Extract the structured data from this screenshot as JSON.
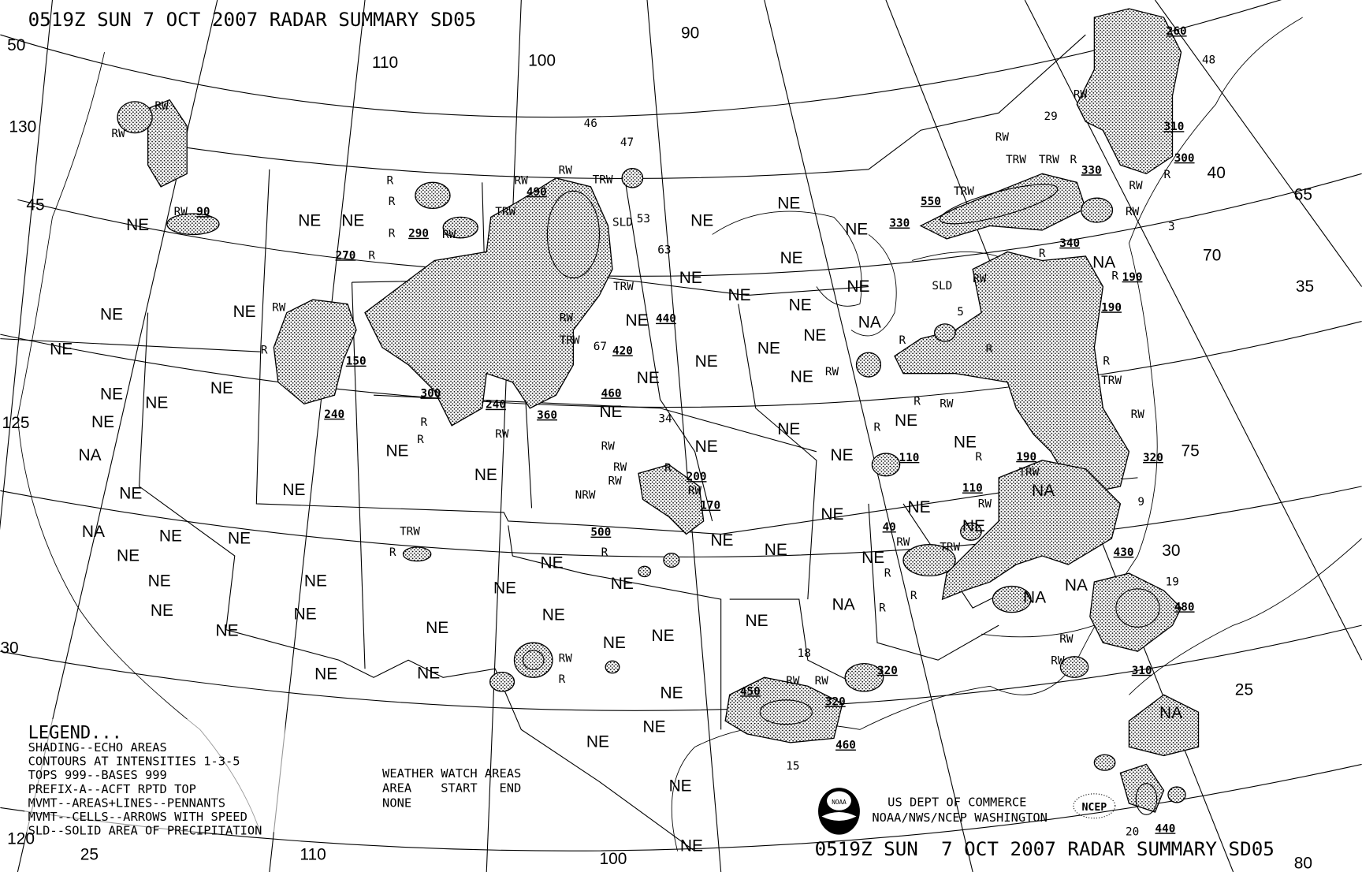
{
  "header": {
    "title": "0519Z SUN  7 OCT 2007 RADAR SUMMARY SD05"
  },
  "footer": {
    "title": "0519Z SUN  7 OCT 2007 RADAR SUMMARY SD05"
  },
  "legend": {
    "heading": "LEGEND...",
    "lines": [
      "SHADING--ECHO AREAS",
      "CONTOURS AT INTENSITIES 1-3-5",
      "TOPS 999--BASES 999",
      "PREFIX-A--ACFT RPTD TOP",
      "MVMT--AREAS+LINES--PENNANTS",
      "MVMT--CELLS--ARROWS WITH SPEED",
      "SLD--SOLID AREA OF PRECIPITATION"
    ]
  },
  "watch": {
    "lines": [
      "WEATHER WATCH AREAS",
      "AREA    START   END",
      "NONE"
    ]
  },
  "credits": {
    "line1": "US DEPT OF COMMERCE",
    "line2": "NOAA/NWS/NCEP WASHINGTON",
    "noaa_logo": "NOAA",
    "ncep_logo": "NCEP"
  },
  "codes": {
    "ne": "NE",
    "na": "NA",
    "r": "R",
    "rw": "RW",
    "trw": "TRW",
    "sld": "SLD",
    "nrw": "NRW"
  },
  "grid_labels": {
    "lon": [
      "130",
      "110",
      "100",
      "90",
      "125",
      "120",
      "110",
      "100",
      "65",
      "70",
      "75",
      "80",
      "20"
    ],
    "lat": [
      "50",
      "45",
      "40",
      "35",
      "30",
      "25",
      "30",
      "25"
    ]
  },
  "tops": [
    "260",
    "310",
    "300",
    "330",
    "550",
    "330",
    "340",
    "190",
    "190",
    "490",
    "290",
    "270",
    "150",
    "240",
    "300",
    "240",
    "360",
    "420",
    "460",
    "440",
    "110",
    "190",
    "320",
    "200",
    "170",
    "500",
    "110",
    "40",
    "430",
    "480",
    "310",
    "320",
    "450",
    "320",
    "460",
    "440",
    "90"
  ],
  "movement": [
    "48",
    "29",
    "3",
    "53",
    "63",
    "46",
    "47",
    "67",
    "34",
    "5",
    "9",
    "18",
    "15",
    "19"
  ],
  "colors": {
    "ink": "#000000",
    "background": "#ffffff"
  }
}
